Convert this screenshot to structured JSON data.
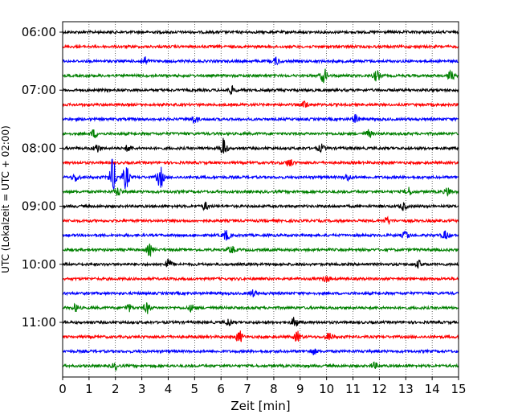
{
  "chart_data": {
    "type": "line",
    "xlabel": "Zeit  [min]",
    "ylabel": "UTC (Lokalzeit = UTC + 02:00)",
    "xlim": [
      0,
      15
    ],
    "x_ticks": [
      0,
      1,
      2,
      3,
      4,
      5,
      6,
      7,
      8,
      9,
      10,
      11,
      12,
      13,
      14,
      15
    ],
    "y_tick_labels": [
      "06:00",
      "07:00",
      "08:00",
      "09:00",
      "10:00",
      "11:00"
    ],
    "grid": "vertical dotted lines at each minute",
    "trace_interval_minutes": 15,
    "color_cycle": [
      "#000000",
      "#ff0000",
      "#0000ff",
      "#008000"
    ],
    "traces": [
      {
        "start": "06:00",
        "color": "#000000",
        "events": []
      },
      {
        "start": "06:15",
        "color": "#ff0000",
        "events": []
      },
      {
        "start": "06:30",
        "color": "#0000ff",
        "events": [
          {
            "t": 3.1,
            "amp": 0.35
          },
          {
            "t": 8.1,
            "amp": 0.3
          }
        ]
      },
      {
        "start": "06:45",
        "color": "#008000",
        "events": [
          {
            "t": 9.9,
            "amp": 0.6
          },
          {
            "t": 11.9,
            "amp": 0.45
          },
          {
            "t": 14.7,
            "amp": 0.4
          }
        ]
      },
      {
        "start": "07:00",
        "color": "#000000",
        "events": [
          {
            "t": 6.4,
            "amp": 0.3
          }
        ]
      },
      {
        "start": "07:15",
        "color": "#ff0000",
        "events": [
          {
            "t": 9.2,
            "amp": 0.3
          }
        ]
      },
      {
        "start": "07:30",
        "color": "#0000ff",
        "events": [
          {
            "t": 5.0,
            "amp": 0.3
          },
          {
            "t": 11.1,
            "amp": 0.35
          }
        ]
      },
      {
        "start": "07:45",
        "color": "#008000",
        "events": [
          {
            "t": 1.2,
            "amp": 0.35
          },
          {
            "t": 11.6,
            "amp": 0.3
          }
        ]
      },
      {
        "start": "08:00",
        "color": "#000000",
        "events": [
          {
            "t": 1.3,
            "amp": 0.35
          },
          {
            "t": 2.5,
            "amp": 0.3
          },
          {
            "t": 6.1,
            "amp": 0.85
          },
          {
            "t": 9.8,
            "amp": 0.3
          }
        ]
      },
      {
        "start": "08:15",
        "color": "#ff0000",
        "events": [
          {
            "t": 8.6,
            "amp": 0.35
          }
        ]
      },
      {
        "start": "08:30",
        "color": "#0000ff",
        "events": [
          {
            "t": 0.5,
            "amp": 0.35
          },
          {
            "t": 1.9,
            "amp": 1.6
          },
          {
            "t": 2.4,
            "amp": 1.0
          },
          {
            "t": 3.7,
            "amp": 0.9
          },
          {
            "t": 10.8,
            "amp": 0.3
          }
        ]
      },
      {
        "start": "08:45",
        "color": "#008000",
        "events": [
          {
            "t": 2.1,
            "amp": 0.35
          },
          {
            "t": 13.1,
            "amp": 0.35
          },
          {
            "t": 14.6,
            "amp": 0.35
          }
        ]
      },
      {
        "start": "09:00",
        "color": "#000000",
        "events": [
          {
            "t": 5.4,
            "amp": 0.3
          },
          {
            "t": 12.9,
            "amp": 0.3
          }
        ]
      },
      {
        "start": "09:15",
        "color": "#ff0000",
        "events": [
          {
            "t": 12.3,
            "amp": 0.3
          }
        ]
      },
      {
        "start": "09:30",
        "color": "#0000ff",
        "events": [
          {
            "t": 6.2,
            "amp": 0.45
          },
          {
            "t": 13.0,
            "amp": 0.35
          },
          {
            "t": 14.5,
            "amp": 0.35
          }
        ]
      },
      {
        "start": "09:45",
        "color": "#008000",
        "events": [
          {
            "t": 3.3,
            "amp": 0.45
          },
          {
            "t": 6.4,
            "amp": 0.3
          }
        ]
      },
      {
        "start": "10:00",
        "color": "#000000",
        "events": [
          {
            "t": 4.0,
            "amp": 0.45
          },
          {
            "t": 13.5,
            "amp": 0.3
          }
        ]
      },
      {
        "start": "10:15",
        "color": "#ff0000",
        "events": [
          {
            "t": 10.0,
            "amp": 0.25
          }
        ]
      },
      {
        "start": "10:30",
        "color": "#0000ff",
        "events": [
          {
            "t": 7.2,
            "amp": 0.25
          }
        ]
      },
      {
        "start": "10:45",
        "color": "#008000",
        "events": [
          {
            "t": 0.5,
            "amp": 0.3
          },
          {
            "t": 2.5,
            "amp": 0.3
          },
          {
            "t": 3.2,
            "amp": 0.45
          },
          {
            "t": 4.9,
            "amp": 0.3
          }
        ]
      },
      {
        "start": "11:00",
        "color": "#000000",
        "events": [
          {
            "t": 6.3,
            "amp": 0.3
          },
          {
            "t": 8.8,
            "amp": 0.45
          }
        ]
      },
      {
        "start": "11:15",
        "color": "#ff0000",
        "events": [
          {
            "t": 6.7,
            "amp": 0.5
          },
          {
            "t": 8.9,
            "amp": 0.45
          },
          {
            "t": 10.1,
            "amp": 0.35
          }
        ]
      },
      {
        "start": "11:30",
        "color": "#0000ff",
        "events": [
          {
            "t": 9.5,
            "amp": 0.25
          }
        ]
      },
      {
        "start": "11:45",
        "color": "#008000",
        "events": [
          {
            "t": 2.0,
            "amp": 0.25
          },
          {
            "t": 11.8,
            "amp": 0.25
          }
        ]
      }
    ]
  }
}
